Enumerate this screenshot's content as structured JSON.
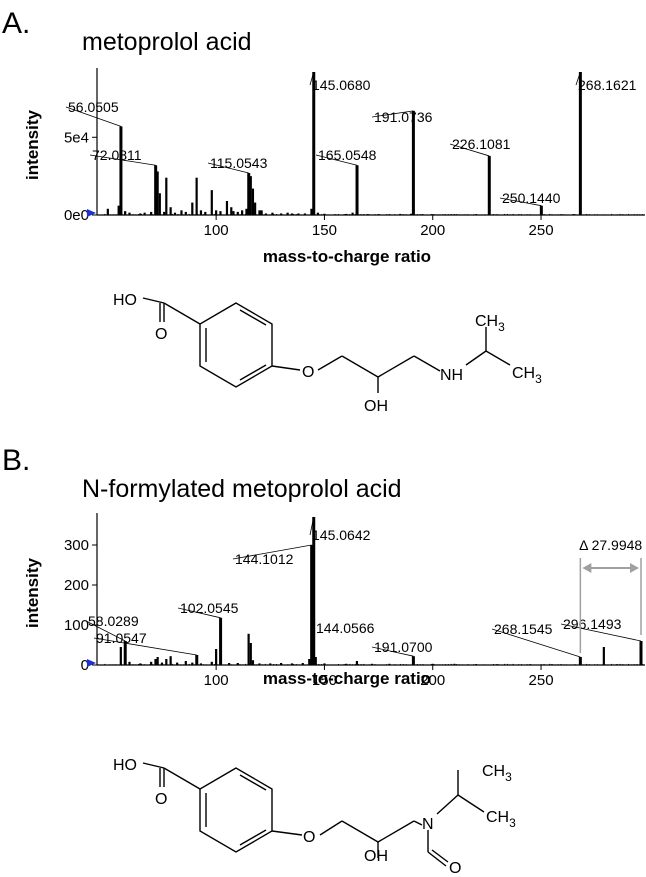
{
  "figure": {
    "panels": [
      {
        "letter": "A.",
        "title": "metoprolol acid"
      },
      {
        "letter": "B.",
        "title": "N-formylated metoprolol acid"
      }
    ]
  },
  "chart_data": [
    {
      "type": "bar",
      "title": "metoprolol acid",
      "xlabel": "mass-to-charge ratio",
      "ylabel": "intensity",
      "xlim": [
        45,
        298
      ],
      "ylim": [
        0,
        92000
      ],
      "xticks": [
        100,
        150,
        200,
        250
      ],
      "yticks": [
        {
          "value": 0,
          "label": "0e0"
        },
        {
          "value": 50000,
          "label": "5e4"
        }
      ],
      "grid": false,
      "peaks": [
        {
          "mz": 56.0505,
          "intensity": 57000,
          "label": "56.0505"
        },
        {
          "mz": 72.0811,
          "intensity": 32000,
          "label": "72.0811"
        },
        {
          "mz": 115.0543,
          "intensity": 27000,
          "label": "115.0543"
        },
        {
          "mz": 145.068,
          "intensity": 92000,
          "label": "145.0680"
        },
        {
          "mz": 165.0548,
          "intensity": 32000,
          "label": "165.0548"
        },
        {
          "mz": 191.0736,
          "intensity": 67000,
          "label": "191.0736"
        },
        {
          "mz": 226.1081,
          "intensity": 38000,
          "label": "226.1081"
        },
        {
          "mz": 250.144,
          "intensity": 6000,
          "label": "250.1440"
        },
        {
          "mz": 268.1621,
          "intensity": 92000,
          "label": "268.1621"
        },
        {
          "mz": 50,
          "intensity": 4000
        },
        {
          "mz": 55,
          "intensity": 6000
        },
        {
          "mz": 58,
          "intensity": 2500
        },
        {
          "mz": 60,
          "intensity": 1500
        },
        {
          "mz": 65,
          "intensity": 1000
        },
        {
          "mz": 67,
          "intensity": 1500
        },
        {
          "mz": 70,
          "intensity": 2000
        },
        {
          "mz": 73,
          "intensity": 28000
        },
        {
          "mz": 74,
          "intensity": 14000
        },
        {
          "mz": 76,
          "intensity": 2000
        },
        {
          "mz": 77,
          "intensity": 24000
        },
        {
          "mz": 79,
          "intensity": 5000
        },
        {
          "mz": 81,
          "intensity": 1500
        },
        {
          "mz": 84,
          "intensity": 3000
        },
        {
          "mz": 86,
          "intensity": 2000
        },
        {
          "mz": 89,
          "intensity": 8000
        },
        {
          "mz": 91,
          "intensity": 24000
        },
        {
          "mz": 93,
          "intensity": 3000
        },
        {
          "mz": 95,
          "intensity": 2000
        },
        {
          "mz": 98,
          "intensity": 16000
        },
        {
          "mz": 100,
          "intensity": 3000
        },
        {
          "mz": 102,
          "intensity": 2500
        },
        {
          "mz": 105,
          "intensity": 9000
        },
        {
          "mz": 107,
          "intensity": 5000
        },
        {
          "mz": 108,
          "intensity": 2500
        },
        {
          "mz": 110,
          "intensity": 2000
        },
        {
          "mz": 112,
          "intensity": 3000
        },
        {
          "mz": 114,
          "intensity": 4000
        },
        {
          "mz": 116,
          "intensity": 25000
        },
        {
          "mz": 117,
          "intensity": 17000
        },
        {
          "mz": 118,
          "intensity": 8000
        },
        {
          "mz": 120,
          "intensity": 3000
        },
        {
          "mz": 121,
          "intensity": 3000
        },
        {
          "mz": 123,
          "intensity": 1000
        },
        {
          "mz": 126,
          "intensity": 1500
        },
        {
          "mz": 130,
          "intensity": 1000
        },
        {
          "mz": 133,
          "intensity": 1500
        },
        {
          "mz": 135,
          "intensity": 1000
        },
        {
          "mz": 138,
          "intensity": 1000
        },
        {
          "mz": 141,
          "intensity": 1000
        },
        {
          "mz": 144,
          "intensity": 4000
        },
        {
          "mz": 147,
          "intensity": 1500
        },
        {
          "mz": 150,
          "intensity": 800
        },
        {
          "mz": 155,
          "intensity": 500
        },
        {
          "mz": 160,
          "intensity": 700
        },
        {
          "mz": 163,
          "intensity": 1500
        },
        {
          "mz": 170,
          "intensity": 600
        },
        {
          "mz": 175,
          "intensity": 600
        },
        {
          "mz": 180,
          "intensity": 500
        },
        {
          "mz": 185,
          "intensity": 700
        },
        {
          "mz": 190,
          "intensity": 800
        },
        {
          "mz": 195,
          "intensity": 500
        },
        {
          "mz": 200,
          "intensity": 500
        },
        {
          "mz": 205,
          "intensity": 400
        },
        {
          "mz": 210,
          "intensity": 500
        },
        {
          "mz": 215,
          "intensity": 400
        },
        {
          "mz": 220,
          "intensity": 500
        },
        {
          "mz": 230,
          "intensity": 400
        },
        {
          "mz": 240,
          "intensity": 400
        },
        {
          "mz": 245,
          "intensity": 400
        },
        {
          "mz": 255,
          "intensity": 400
        },
        {
          "mz": 260,
          "intensity": 400
        },
        {
          "mz": 265,
          "intensity": 600
        },
        {
          "mz": 280,
          "intensity": 300
        },
        {
          "mz": 290,
          "intensity": 300
        }
      ]
    },
    {
      "type": "bar",
      "title": "N-formylated metoprolol acid",
      "xlabel": "mass-to-charge ratio",
      "ylabel": "intensity",
      "xlim": [
        45,
        298
      ],
      "ylim": [
        0,
        370
      ],
      "xticks": [
        100,
        150,
        200,
        250
      ],
      "yticks": [
        {
          "value": 0,
          "label": "0"
        },
        {
          "value": 100,
          "label": "100"
        },
        {
          "value": 200,
          "label": "200"
        },
        {
          "value": 300,
          "label": "300"
        }
      ],
      "grid": false,
      "peaks": [
        {
          "mz": 58.0289,
          "intensity": 60,
          "label": "58.0289"
        },
        {
          "mz": 91.0547,
          "intensity": 25,
          "label": "91.0547"
        },
        {
          "mz": 102.0545,
          "intensity": 118,
          "label": "102.0545"
        },
        {
          "mz": 144.1012,
          "intensity": 300,
          "label": "144.1012"
        },
        {
          "mz": 145.0642,
          "intensity": 370,
          "label": "145.0642"
        },
        {
          "mz": 144.0566,
          "intensity": 6,
          "label": "144.0566"
        },
        {
          "mz": 191.07,
          "intensity": 22,
          "label": "191.0700"
        },
        {
          "mz": 268.1545,
          "intensity": 20,
          "label": "268.1545"
        },
        {
          "mz": 296.1493,
          "intensity": 60,
          "label": "296.1493"
        },
        {
          "mz": 279,
          "intensity": 45
        },
        {
          "mz": 56,
          "intensity": 45
        },
        {
          "mz": 60,
          "intensity": 8
        },
        {
          "mz": 65,
          "intensity": 4
        },
        {
          "mz": 70,
          "intensity": 8
        },
        {
          "mz": 72,
          "intensity": 15
        },
        {
          "mz": 73,
          "intensity": 20
        },
        {
          "mz": 75,
          "intensity": 6
        },
        {
          "mz": 77,
          "intensity": 15
        },
        {
          "mz": 79,
          "intensity": 22
        },
        {
          "mz": 82,
          "intensity": 6
        },
        {
          "mz": 86,
          "intensity": 10
        },
        {
          "mz": 89,
          "intensity": 6
        },
        {
          "mz": 93,
          "intensity": 4
        },
        {
          "mz": 98,
          "intensity": 8
        },
        {
          "mz": 100,
          "intensity": 40
        },
        {
          "mz": 106,
          "intensity": 5
        },
        {
          "mz": 110,
          "intensity": 5
        },
        {
          "mz": 115,
          "intensity": 78
        },
        {
          "mz": 116,
          "intensity": 55
        },
        {
          "mz": 117,
          "intensity": 12
        },
        {
          "mz": 120,
          "intensity": 4
        },
        {
          "mz": 125,
          "intensity": 4
        },
        {
          "mz": 130,
          "intensity": 5
        },
        {
          "mz": 135,
          "intensity": 4
        },
        {
          "mz": 140,
          "intensity": 5
        },
        {
          "mz": 143,
          "intensity": 15
        },
        {
          "mz": 146,
          "intensity": 20
        },
        {
          "mz": 150,
          "intensity": 4
        },
        {
          "mz": 160,
          "intensity": 3
        },
        {
          "mz": 165,
          "intensity": 10
        },
        {
          "mz": 172,
          "intensity": 3
        },
        {
          "mz": 180,
          "intensity": 3
        },
        {
          "mz": 200,
          "intensity": 3
        },
        {
          "mz": 210,
          "intensity": 3
        },
        {
          "mz": 220,
          "intensity": 2
        },
        {
          "mz": 230,
          "intensity": 2
        },
        {
          "mz": 245,
          "intensity": 2
        },
        {
          "mz": 255,
          "intensity": 2
        },
        {
          "mz": 285,
          "intensity": 2
        }
      ],
      "annotations": [
        {
          "text": "Δ 27.9948",
          "from_mz": 268.1545,
          "to_mz": 296.1493
        }
      ]
    }
  ],
  "structures": [
    {
      "name": "metoprolol acid",
      "labels": {
        "acid_oh": "HO",
        "carbonyl_o": "O",
        "ether_o": "O",
        "hydroxyl": "OH",
        "amine": "NH",
        "methyl": "CH",
        "methyl_sub": "3"
      }
    },
    {
      "name": "N-formylated metoprolol acid",
      "labels": {
        "acid_oh": "HO",
        "carbonyl_o": "O",
        "ether_o": "O",
        "hydroxyl": "OH",
        "amine": "N",
        "formyl_o": "O",
        "methyl": "CH",
        "methyl_sub": "3"
      }
    }
  ],
  "colors": {
    "bars": "#000000",
    "marker": "#1f2fd6",
    "annotation": "#a0a0a0"
  }
}
